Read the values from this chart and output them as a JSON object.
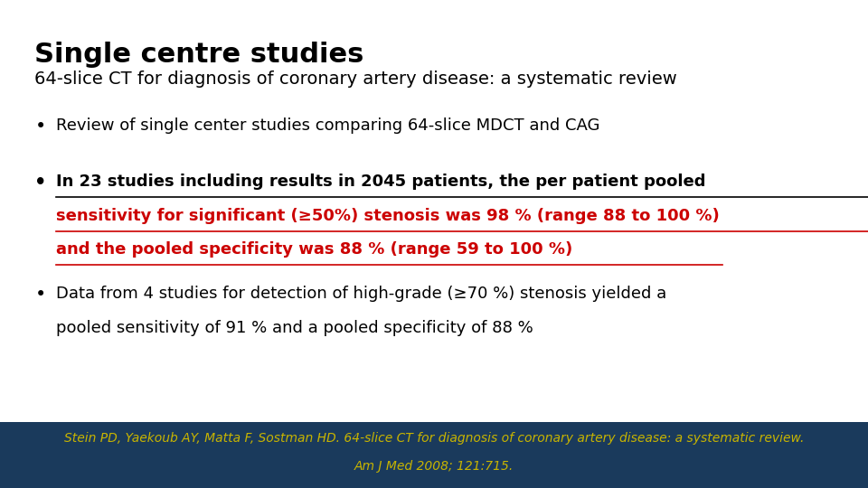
{
  "title": "Single centre studies",
  "subtitle": "64-slice CT for diagnosis of coronary artery disease: a systematic review",
  "bullet1": "Review of single center studies comparing 64-slice MDCT and CAG",
  "bullet2_line1": "In 23 studies including results in 2045 patients, the per patient pooled",
  "bullet2_line2": "sensitivity for significant (≥50%) stenosis was 98 % (range 88 to 100 %)",
  "bullet2_line3": "and the pooled specificity was 88 % (range 59 to 100 %)",
  "bullet3_line1": "Data from 4 studies for detection of high-grade (≥70 %) stenosis yielded a",
  "bullet3_line2": "pooled sensitivity of 91 % and a pooled specificity of 88 %",
  "footer_line1": "Stein PD, Yaekoub AY, Matta F, Sostman HD. 64-slice CT for diagnosis of coronary artery disease: a systematic review.",
  "footer_line2": "Am J Med 2008; 121:715.",
  "bg_color": "#ffffff",
  "footer_bg_color": "#1a3a5c",
  "title_color": "#000000",
  "subtitle_color": "#000000",
  "bullet1_color": "#000000",
  "bullet2_line1_color": "#000000",
  "bullet2_red_color": "#cc0000",
  "bullet3_color": "#000000",
  "footer_text_color": "#c8b400",
  "title_fontsize": 22,
  "subtitle_fontsize": 14,
  "bullet_fontsize": 13,
  "footer_fontsize": 10
}
